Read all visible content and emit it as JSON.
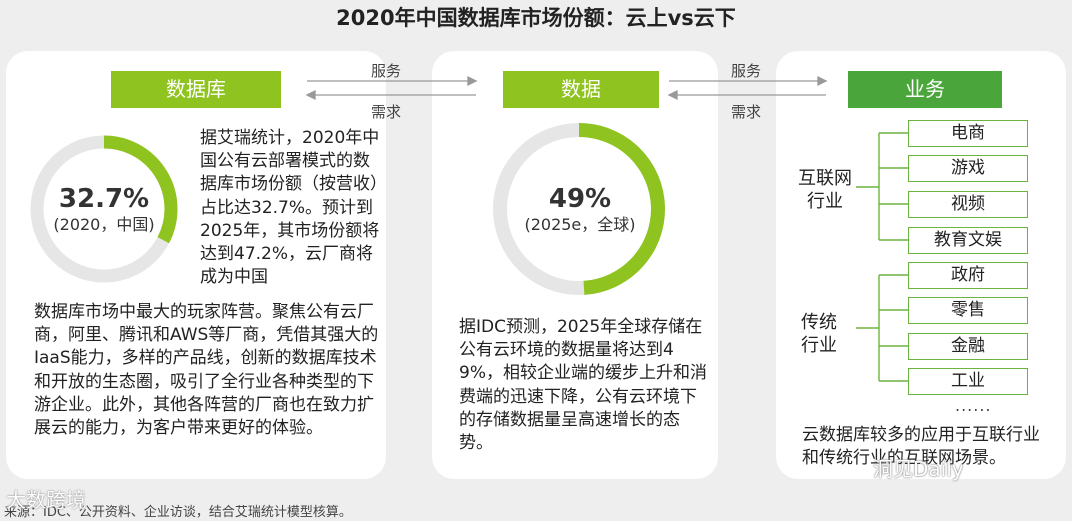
{
  "title": "2020年中国数据库市场份额：云上vs云下",
  "colors": {
    "accent_light": "#8fc31f",
    "accent_dark": "#4aa63a",
    "ring_track": "#e6e6e6",
    "box_border": "#6db33f"
  },
  "arrows": {
    "serve_label": "服务",
    "demand_label": "需求"
  },
  "panel_db": {
    "header": "数据库",
    "donut": {
      "value_text": "32.7%",
      "sub_text": "(2020，中国)",
      "fraction": 0.327
    },
    "text_side": "据艾瑞统计，2020年中国公有云部署模式的数据库市场份额（按营收）占比达32.7%。预计到2025年，其市场份额将达到47.2%，云厂商将成为中国",
    "text_bottom": "数据库市场中最大的玩家阵营。聚焦公有云厂商，阿里、腾讯和AWS等厂商，凭借其强大的IaaS能力，多样的产品线，创新的数据库技术和开放的生态圈，吸引了全行业各种类型的下游企业。此外，其他各阵营的厂商也在致力扩展云的能力，为客户带来更好的体验。"
  },
  "panel_data": {
    "header": "数据",
    "donut": {
      "value_text": "49%",
      "sub_text": "(2025e，全球)",
      "fraction": 0.49
    },
    "text": "据IDC预测，2025年全球存储在公有云环境的数据量将达到49%，相较企业端的缓步上升和消费端的迅速下降，公有云环境下的存储数据量呈高速增长的态势。"
  },
  "panel_biz": {
    "header": "业务",
    "groups": [
      {
        "label": "互联网行业",
        "items": [
          "电商",
          "游戏",
          "视频",
          "教育文娱"
        ]
      },
      {
        "label": "传统行业",
        "items": [
          "政府",
          "零售",
          "金融",
          "工业"
        ]
      }
    ],
    "ellipsis": "......",
    "text": "云数据库较多的应用于互联行业和传统行业的互联网场景。"
  },
  "source": "来源：IDC、公开资料、企业访谈，结合艾瑞统计模型核算。",
  "watermarks": {
    "left": "大数跨境",
    "right": "洞见Daily"
  }
}
